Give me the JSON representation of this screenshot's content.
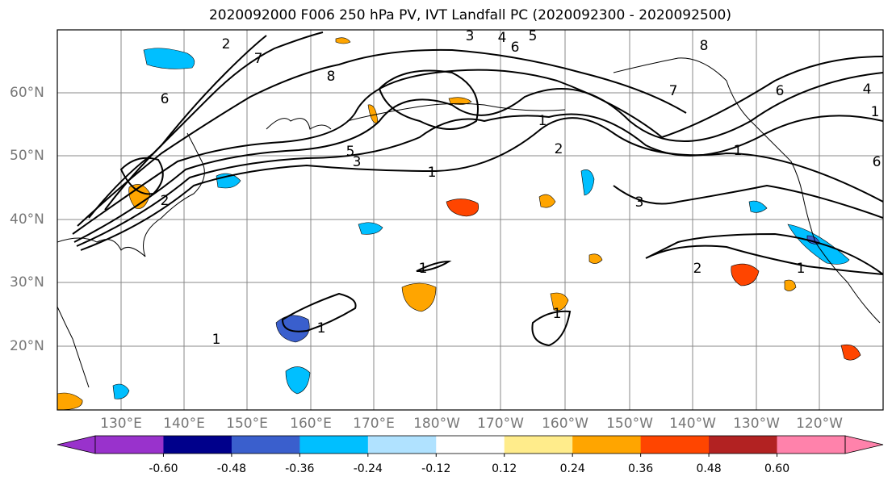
{
  "title": "2020092000 F006 250 hPa PV, IVT Landfall PC (2020092300 - 2020092500)",
  "lat_labels": [
    "60°N",
    "50°N",
    "40°N",
    "30°N",
    "20°N"
  ],
  "lon_labels": [
    "130°E",
    "140°E",
    "150°E",
    "160°E",
    "170°E",
    "180°W",
    "170°W",
    "160°W",
    "150°W",
    "140°W",
    "130°W",
    "120°W"
  ],
  "contour_labels": [
    "2",
    "3",
    "4",
    "5",
    "6",
    "7",
    "8",
    "6",
    "5",
    "3",
    "1",
    "1",
    "2",
    "1",
    "1",
    "1",
    "1",
    "8",
    "7",
    "6",
    "3",
    "2",
    "1",
    "2",
    "1",
    "6",
    "1",
    "4"
  ],
  "colorbar": {
    "ticks": [
      "-0.60",
      "-0.48",
      "-0.36",
      "-0.24",
      "-0.12",
      "0.12",
      "0.24",
      "0.36",
      "0.48",
      "0.60"
    ],
    "colors": [
      "#9932cc",
      "#00008b",
      "#3a5fcd",
      "#00bfff",
      "#b0e2ff",
      "#ffffff",
      "#ffec8b",
      "#ffa500",
      "#ff4500",
      "#b22222",
      "#ff82ab"
    ]
  },
  "colors": {
    "axis_text": "#777777",
    "grid": "#888888",
    "contour": "#000000"
  },
  "legend_position": "bottom"
}
